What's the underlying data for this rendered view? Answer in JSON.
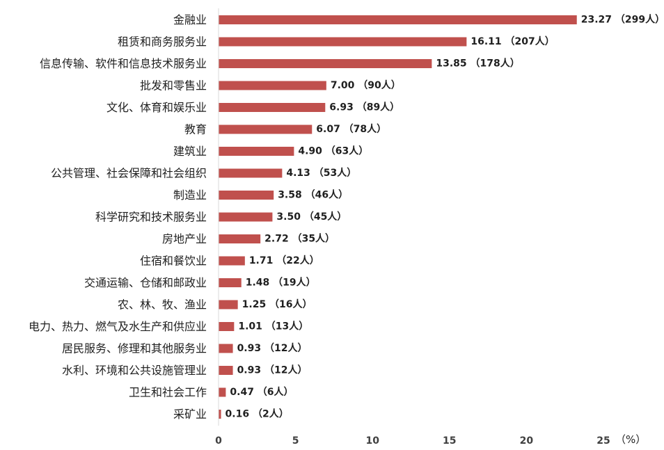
{
  "chart_data": {
    "type": "bar",
    "orientation": "horizontal",
    "categories": [
      "金融业",
      "租赁和商务服务业",
      "信息传输、软件和信息技术服务业",
      "批发和零售业",
      "文化、体育和娱乐业",
      "教育",
      "建筑业",
      "公共管理、社会保障和社会组织",
      "制造业",
      "科学研究和技术服务业",
      "房地产业",
      "住宿和餐饮业",
      "交通运输、仓储和邮政业",
      "农、林、牧、渔业",
      "电力、热力、燃气及水生产和供应业",
      "居民服务、修理和其他服务业",
      "水利、环境和公共设施管理业",
      "卫生和社会工作",
      "采矿业"
    ],
    "values": [
      23.27,
      16.11,
      13.85,
      7.0,
      6.93,
      6.07,
      4.9,
      4.13,
      3.58,
      3.5,
      2.72,
      1.71,
      1.48,
      1.25,
      1.01,
      0.93,
      0.93,
      0.47,
      0.16
    ],
    "data_labels": [
      "23.27 （299人）",
      "16.11 （207人）",
      "13.85 （178人）",
      "7.00 （90人）",
      "6.93 （89人）",
      "6.07 （78人）",
      "4.90 （63人）",
      "4.13 （53人）",
      "3.58 （46人）",
      "3.50 （45人）",
      "2.72 （35人）",
      "1.71 （22人）",
      "1.48 （19人）",
      "1.25 （16人）",
      "1.01 （13人）",
      "0.93 （12人）",
      "0.93 （12人）",
      "0.47 （6人）",
      "0.16 （2人）"
    ],
    "x_ticks": [
      "0",
      "5",
      "10",
      "15",
      "20",
      "25"
    ],
    "x_unit": "（%）",
    "xlim": [
      0,
      25
    ],
    "grid": false,
    "legend": "none",
    "bar_color": "#c0504d"
  }
}
